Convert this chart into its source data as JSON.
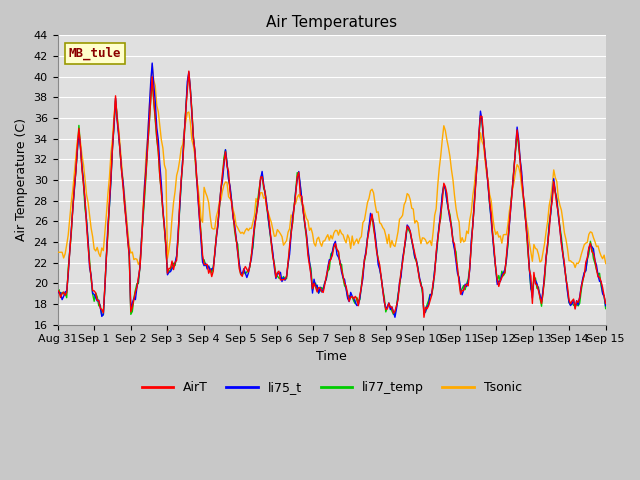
{
  "title": "Air Temperatures",
  "xlabel": "Time",
  "ylabel": "Air Temperature (C)",
  "ylim": [
    16,
    44
  ],
  "yticks": [
    16,
    18,
    20,
    22,
    24,
    26,
    28,
    30,
    32,
    34,
    36,
    38,
    40,
    42,
    44
  ],
  "x_labels": [
    "Aug 31",
    "Sep 1",
    "Sep 2",
    "Sep 3",
    "Sep 4",
    "Sep 5",
    "Sep 6",
    "Sep 7",
    "Sep 8",
    "Sep 9",
    "Sep 10",
    "Sep 11",
    "Sep 12",
    "Sep 13",
    "Sep 14",
    "Sep 15"
  ],
  "series_colors": {
    "AirT": "#ff0000",
    "li75_t": "#0000ff",
    "li77_temp": "#00cc00",
    "Tsonic": "#ffaa00"
  },
  "annotation_text": "MB_tule",
  "annotation_color": "#8b0000",
  "annotation_bg": "#ffffcc",
  "fig_bg": "#c8c8c8",
  "plot_bg": "#e0e0e0",
  "grid_color": "#ffffff",
  "title_fontsize": 11,
  "label_fontsize": 9,
  "tick_fontsize": 8,
  "line_width": 1.0
}
